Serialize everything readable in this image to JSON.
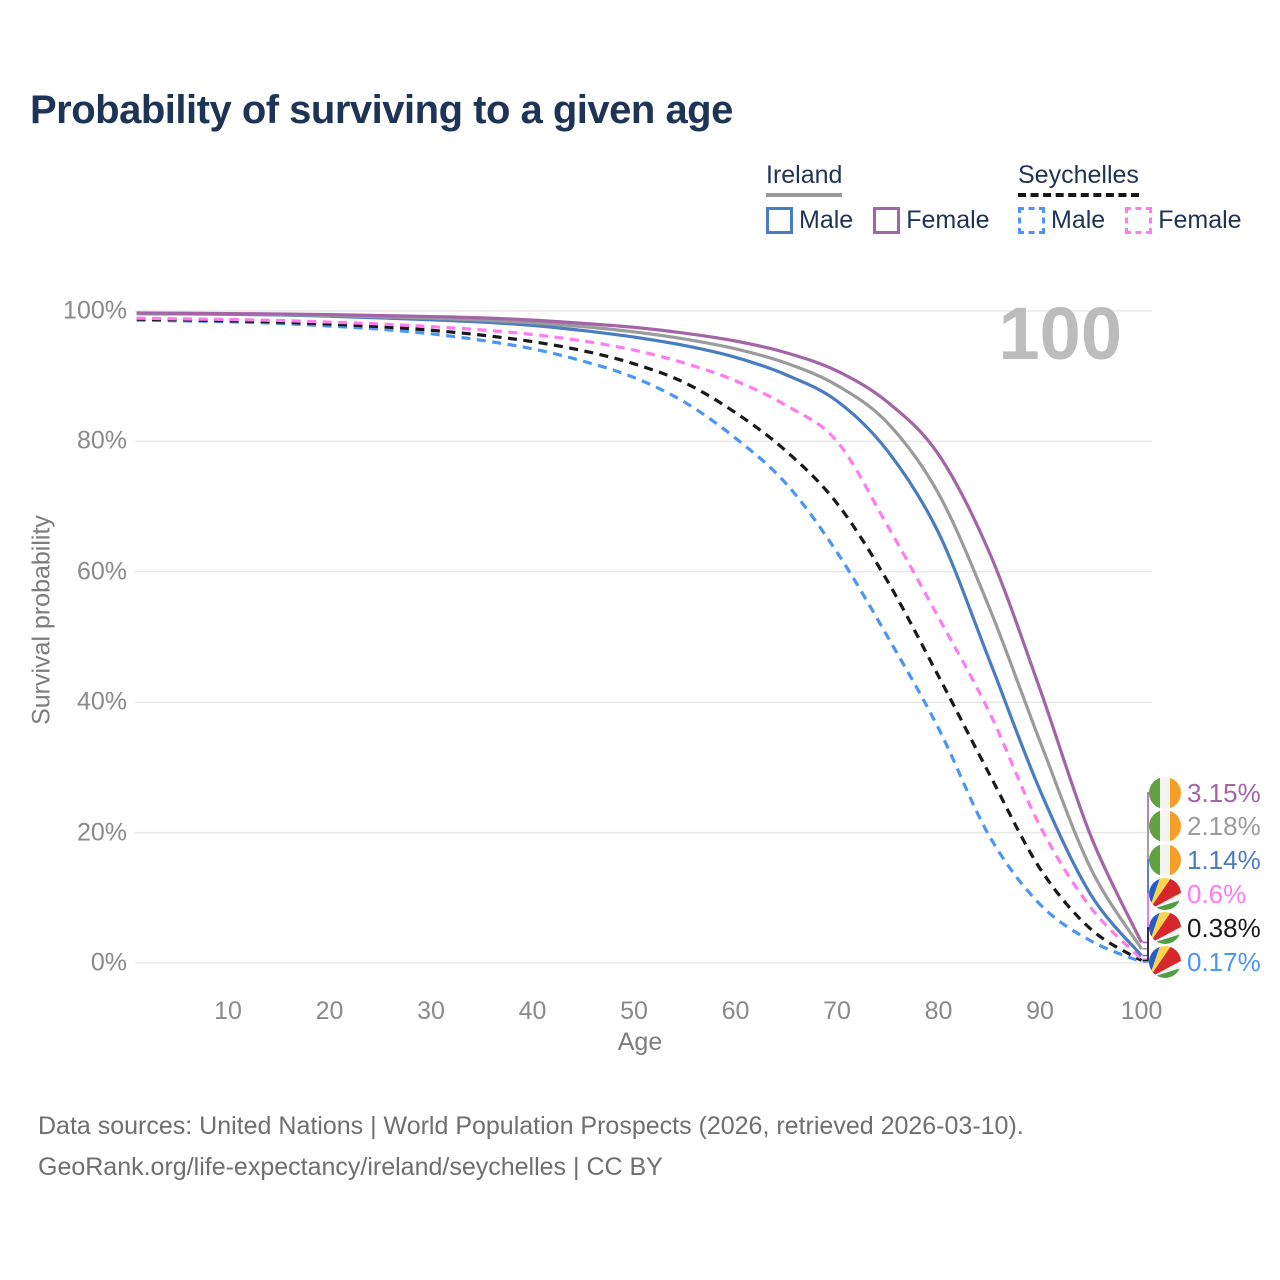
{
  "title": "Probability of surviving to a given age",
  "watermark_age": "100",
  "legend": {
    "ireland": {
      "label": "Ireland",
      "male": "Male",
      "female": "Female"
    },
    "seychelles": {
      "label": "Seychelles",
      "male": "Male",
      "female": "Female"
    }
  },
  "colors": {
    "title_text": "#1d3456",
    "axis_text": "#8a8a8a",
    "gridline": "#e8e8e8",
    "ireland_female": "#a364a8",
    "ireland_both": "#9b9b9b",
    "ireland_male": "#4a7cc2",
    "seychelles_female": "#ff7bf0",
    "seychelles_both": "#191919",
    "seychelles_male": "#4b96f5",
    "watermark": "#bcbcbc",
    "footer_text": "#6f6f6f"
  },
  "chart_data": {
    "type": "line",
    "title": "Probability of surviving to a given age",
    "xlabel": "Age",
    "ylabel": "Survival probability",
    "xlim": [
      1,
      100
    ],
    "ylim": [
      0,
      100
    ],
    "grid": true,
    "legend_position": "top-right",
    "hover_age_display": "100",
    "x_ticks": [
      10,
      20,
      30,
      40,
      50,
      60,
      70,
      80,
      90,
      100
    ],
    "y_ticks": [
      {
        "text": "0%",
        "v": 0
      },
      {
        "text": "20%",
        "v": 20
      },
      {
        "text": "40%",
        "v": 40
      },
      {
        "text": "60%",
        "v": 60
      },
      {
        "text": "80%",
        "v": 80
      },
      {
        "text": "100%",
        "v": 100
      }
    ],
    "x": [
      1,
      5,
      10,
      15,
      20,
      25,
      30,
      35,
      40,
      45,
      50,
      55,
      60,
      65,
      70,
      75,
      80,
      85,
      90,
      95,
      100
    ],
    "series": [
      {
        "name": "Ireland Female",
        "country": "Ireland",
        "sex": "Female",
        "style": "solid",
        "color_key": "ireland_female",
        "flag": "ireland",
        "end_label": "3.15%",
        "values": [
          99.7,
          99.65,
          99.6,
          99.55,
          99.45,
          99.3,
          99.15,
          98.95,
          98.6,
          98.1,
          97.5,
          96.6,
          95.4,
          93.6,
          90.8,
          86.0,
          78.0,
          63.0,
          42.0,
          19.5,
          3.15
        ]
      },
      {
        "name": "Ireland Both sexes",
        "country": "Ireland",
        "sex": "Both",
        "style": "solid",
        "color_key": "ireland_both",
        "flag": "ireland",
        "end_label": "2.18%",
        "values": [
          99.65,
          99.6,
          99.55,
          99.45,
          99.3,
          99.1,
          98.9,
          98.6,
          98.2,
          97.6,
          96.8,
          95.7,
          94.2,
          92.0,
          88.6,
          82.8,
          72.0,
          54.5,
          34.0,
          14.5,
          2.18
        ]
      },
      {
        "name": "Ireland Male",
        "country": "Ireland",
        "sex": "Male",
        "style": "solid",
        "color_key": "ireland_male",
        "flag": "ireland",
        "end_label": "1.14%",
        "values": [
          99.6,
          99.55,
          99.5,
          99.4,
          99.2,
          98.95,
          98.65,
          98.3,
          97.8,
          97.0,
          96.0,
          94.7,
          92.9,
          90.2,
          86.2,
          78.5,
          66.0,
          46.5,
          26.5,
          10.5,
          1.14
        ]
      },
      {
        "name": "Seychelles Female",
        "country": "Seychelles",
        "sex": "Female",
        "style": "dashed",
        "color_key": "seychelles_female",
        "flag": "seychelles",
        "end_label": "0.6%",
        "values": [
          98.9,
          98.8,
          98.7,
          98.55,
          98.3,
          98.0,
          97.6,
          97.1,
          96.4,
          95.4,
          94.0,
          92.0,
          89.3,
          85.5,
          80.0,
          67.0,
          53.0,
          38.5,
          21.0,
          8.5,
          0.6
        ]
      },
      {
        "name": "Seychelles Both sexes",
        "country": "Seychelles",
        "sex": "Both",
        "style": "dashed",
        "color_key": "seychelles_both",
        "flag": "seychelles",
        "end_label": "0.38%",
        "values": [
          98.75,
          98.65,
          98.5,
          98.3,
          98.0,
          97.6,
          97.05,
          96.3,
          95.3,
          93.9,
          91.9,
          89.0,
          84.4,
          78.5,
          70.5,
          58.5,
          44.0,
          29.0,
          14.5,
          5.2,
          0.38
        ]
      },
      {
        "name": "Seychelles Male",
        "country": "Seychelles",
        "sex": "Male",
        "style": "dashed",
        "color_key": "seychelles_male",
        "flag": "seychelles",
        "end_label": "0.17%",
        "values": [
          98.6,
          98.5,
          98.35,
          98.1,
          97.7,
          97.2,
          96.5,
          95.5,
          94.2,
          92.3,
          89.8,
          86.0,
          80.5,
          73.5,
          63.0,
          50.0,
          36.0,
          19.5,
          9.0,
          3.4,
          0.17
        ]
      }
    ],
    "end_label_y_centers": [
      793,
      826,
      860,
      894,
      928,
      962
    ]
  },
  "footer": {
    "line1": "Data sources: United Nations | World Population Prospects (2026, retrieved 2026-03-10).",
    "line2": "GeoRank.org/life-expectancy/ireland/seychelles | CC BY"
  }
}
